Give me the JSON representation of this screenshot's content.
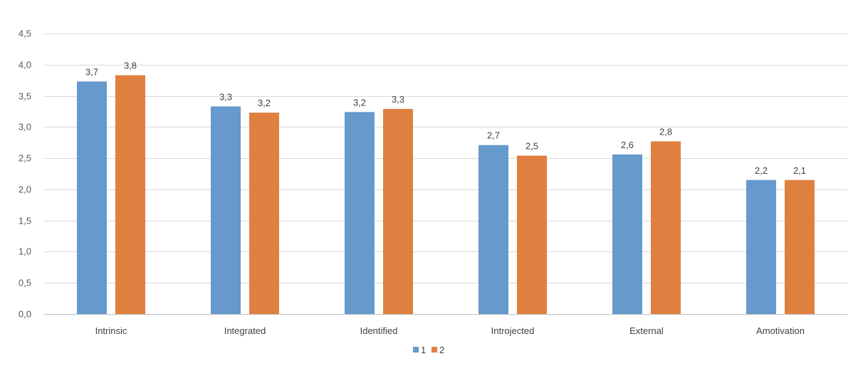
{
  "chart_data": {
    "type": "bar",
    "title": "",
    "xlabel": "",
    "ylabel": "",
    "categories": [
      "Intrinsic",
      "Integrated",
      "Identified",
      "Introjected",
      "External",
      "Amotivation"
    ],
    "series": [
      {
        "name": "1",
        "color": "#6699CC",
        "values": [
          3.73,
          3.33,
          3.24,
          2.71,
          2.56,
          2.15
        ],
        "labels": [
          "3,7",
          "3,3",
          "3,2",
          "2,7",
          "2,6",
          "2,2"
        ]
      },
      {
        "name": "2",
        "color": "#E08040",
        "values": [
          3.83,
          3.23,
          3.29,
          2.54,
          2.77,
          2.15
        ],
        "labels": [
          "3,8",
          "3,2",
          "3,3",
          "2,5",
          "2,8",
          "2,1"
        ]
      }
    ],
    "ylim": [
      0,
      4.5
    ],
    "yticks": [
      0,
      0.5,
      1.0,
      1.5,
      2.0,
      2.5,
      3.0,
      3.5,
      4.0,
      4.5
    ],
    "ytick_labels": [
      "0,0",
      "0,5",
      "1,0",
      "1,5",
      "2,0",
      "2,5",
      "3,0",
      "3,5",
      "4,0",
      "4,5"
    ],
    "grid": true,
    "legend_position": "bottom"
  }
}
